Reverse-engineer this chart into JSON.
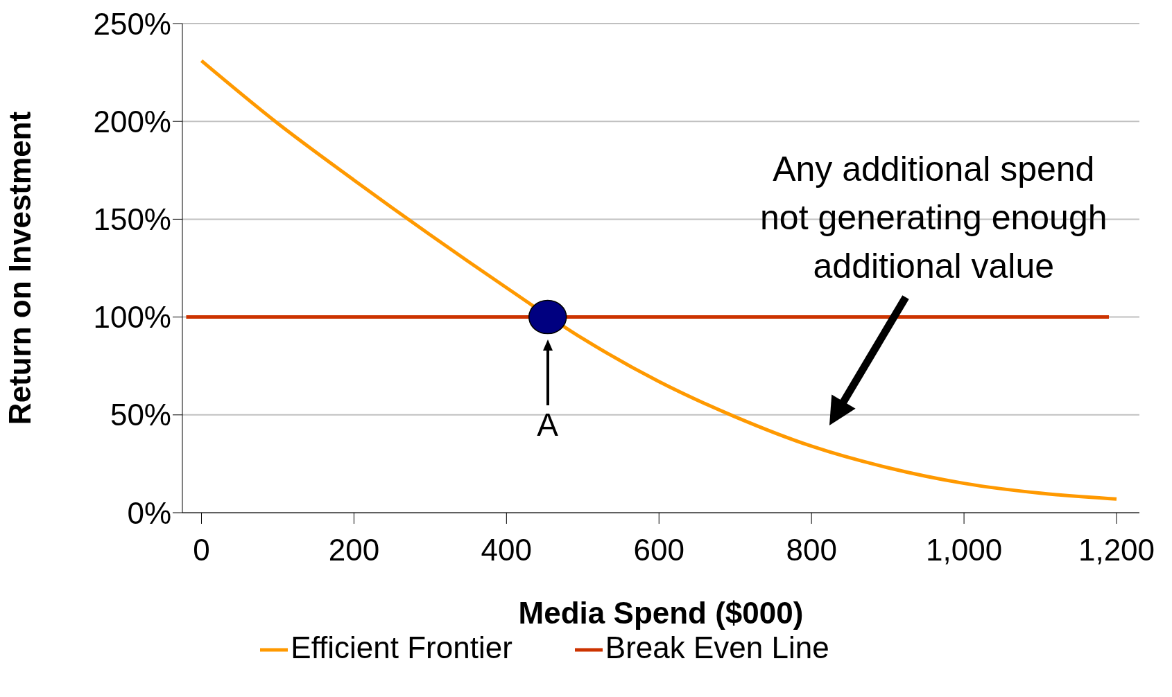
{
  "chart_data": {
    "type": "line",
    "xlabel": "Media Spend ($000)",
    "ylabel": "Return on Investment",
    "xlim": [
      -25,
      1230
    ],
    "ylim": [
      0,
      250
    ],
    "xticks": [
      0,
      200,
      400,
      600,
      800,
      {
        "value": 1000,
        "label": "1,000"
      },
      {
        "value": 1200,
        "label": "1,200"
      }
    ],
    "yticks": [
      {
        "value": 0,
        "label": "0%"
      },
      {
        "value": 50,
        "label": "50%"
      },
      {
        "value": 100,
        "label": "100%"
      },
      {
        "value": 150,
        "label": "150%"
      },
      {
        "value": 200,
        "label": "200%"
      },
      {
        "value": 250,
        "label": "250%"
      }
    ],
    "grid": "y",
    "legend": "bottom",
    "series": [
      {
        "name": "Efficient Frontier",
        "color": "#ff9900",
        "x": [
          0,
          100,
          200,
          300,
          400,
          500,
          600,
          700,
          800,
          900,
          1000,
          1100,
          1200
        ],
        "values": [
          231,
          199,
          170,
          142,
          115,
          89,
          67,
          49,
          34,
          23,
          15,
          10,
          7
        ]
      },
      {
        "name": "Break Even Line",
        "color": "#cc3300",
        "x": [
          -20,
          1190
        ],
        "values": [
          100,
          100
        ]
      },
      {
        "type": "scatter",
        "color": "#000080",
        "x": [
          454
        ],
        "values": [
          100
        ]
      }
    ],
    "annotations": [
      {
        "text": "A",
        "x": 454,
        "y": 100
      },
      "Any additional spend\nnot generating enough\nadditional value"
    ]
  }
}
